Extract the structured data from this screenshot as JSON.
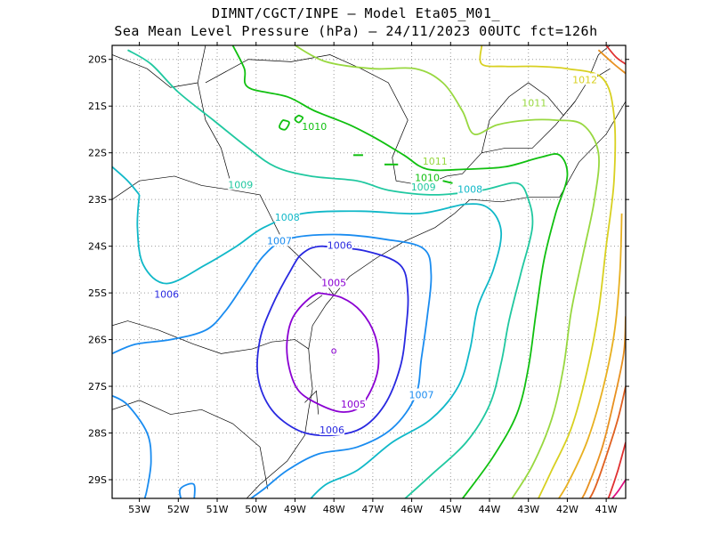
{
  "title": {
    "line1": "DIMNT/CGCT/INPE –  Model Eta05_M01_",
    "line2": "Sea Mean Level Pressure (hPa) – 24/11/2023 00UTC fct=126h"
  },
  "axes": {
    "lon_labels": [
      "53W",
      "52W",
      "51W",
      "50W",
      "49W",
      "48W",
      "47W",
      "46W",
      "45W",
      "44W",
      "43W",
      "42W",
      "41W"
    ],
    "lat_labels": [
      "20S",
      "21S",
      "22S",
      "23S",
      "24S",
      "25S",
      "26S",
      "27S",
      "28S",
      "29S"
    ],
    "lon_range": [
      -53.7,
      -40.5
    ],
    "lat_range": [
      -29.4,
      -19.7
    ],
    "grid": "dotted"
  },
  "colors": {
    "c1005": "#8a00d2",
    "c1006": "#2828e0",
    "c1007": "#1a8cf0",
    "c1008": "#10b8c8",
    "c1009": "#20c8a0",
    "c1010": "#10c010",
    "c1011": "#98d840",
    "c1012": "#d8d020",
    "c1013": "#e8b020",
    "c1014": "#e89020",
    "c1015": "#e06020",
    "c1016": "#e03030",
    "c1017": "#e01080",
    "coast": "#000000"
  },
  "contour_labels": [
    {
      "text": "1005",
      "level": 1005,
      "lon": -48.0,
      "lat": -24.8
    },
    {
      "text": "1005",
      "level": 1005,
      "lon": -47.5,
      "lat": -27.4
    },
    {
      "text": "1006",
      "level": 1006,
      "lon": -47.85,
      "lat": -24.0
    },
    {
      "text": "1006",
      "level": 1006,
      "lon": -48.05,
      "lat": -27.95
    },
    {
      "text": "1006",
      "level": 1006,
      "lon": -52.3,
      "lat": -25.05
    },
    {
      "text": "1007",
      "level": 1007,
      "lon": -49.4,
      "lat": -23.9
    },
    {
      "text": "1007",
      "level": 1007,
      "lon": -45.75,
      "lat": -27.2
    },
    {
      "text": "1008",
      "level": 1008,
      "lon": -49.2,
      "lat": -23.4
    },
    {
      "text": "1008",
      "level": 1008,
      "lon": -44.5,
      "lat": -22.8
    },
    {
      "text": "1009",
      "level": 1009,
      "lon": -50.4,
      "lat": -22.7
    },
    {
      "text": "1009",
      "level": 1009,
      "lon": -45.7,
      "lat": -22.75
    },
    {
      "text": "1010",
      "level": 1010,
      "lon": -48.5,
      "lat": -21.45
    },
    {
      "text": "1010",
      "level": 1010,
      "lon": -45.6,
      "lat": -22.55
    },
    {
      "text": "1011",
      "level": 1011,
      "lon": -45.4,
      "lat": -22.2
    },
    {
      "text": "1011",
      "level": 1011,
      "lon": -42.85,
      "lat": -20.95
    },
    {
      "text": "1012",
      "level": 1012,
      "lon": -41.55,
      "lat": -20.45
    }
  ],
  "low_marker": {
    "text": "o",
    "lon": -48.0,
    "lat": -26.25
  },
  "chart_data": {
    "type": "contour",
    "title": "Sea Mean Level Pressure (hPa) – 24/11/2023 00UTC fct=126h",
    "units": "hPa",
    "levels": [
      1005,
      1006,
      1007,
      1008,
      1009,
      1010,
      1011,
      1012,
      1013,
      1014,
      1015,
      1016,
      1017
    ],
    "minimum_center": {
      "lon": -48.0,
      "lat": -26.25
    },
    "labeled_levels": [
      1005,
      1006,
      1007,
      1008,
      1009,
      1010,
      1011,
      1012
    ]
  }
}
